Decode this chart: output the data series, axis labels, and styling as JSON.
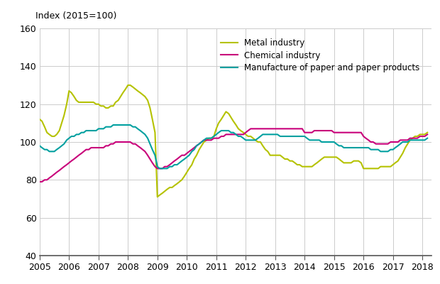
{
  "title": "Index (2015=100)",
  "ylim": [
    40,
    160
  ],
  "xlim": [
    2005,
    2018.3
  ],
  "yticks": [
    40,
    60,
    80,
    100,
    120,
    140,
    160
  ],
  "xticks": [
    2005,
    2006,
    2007,
    2008,
    2009,
    2010,
    2011,
    2012,
    2013,
    2014,
    2015,
    2016,
    2017,
    2018
  ],
  "series": {
    "metal": {
      "label": "Metal industry",
      "color": "#b5c200",
      "linewidth": 1.5,
      "x": [
        2005.0,
        2005.08,
        2005.17,
        2005.25,
        2005.33,
        2005.42,
        2005.5,
        2005.58,
        2005.67,
        2005.75,
        2005.83,
        2005.92,
        2006.0,
        2006.08,
        2006.17,
        2006.25,
        2006.33,
        2006.42,
        2006.5,
        2006.58,
        2006.67,
        2006.75,
        2006.83,
        2006.92,
        2007.0,
        2007.08,
        2007.17,
        2007.25,
        2007.33,
        2007.42,
        2007.5,
        2007.58,
        2007.67,
        2007.75,
        2007.83,
        2007.92,
        2008.0,
        2008.08,
        2008.17,
        2008.25,
        2008.33,
        2008.42,
        2008.5,
        2008.58,
        2008.67,
        2008.75,
        2008.83,
        2008.92,
        2009.0,
        2009.08,
        2009.17,
        2009.25,
        2009.33,
        2009.42,
        2009.5,
        2009.58,
        2009.67,
        2009.75,
        2009.83,
        2009.92,
        2010.0,
        2010.08,
        2010.17,
        2010.25,
        2010.33,
        2010.42,
        2010.5,
        2010.58,
        2010.67,
        2010.75,
        2010.83,
        2010.92,
        2011.0,
        2011.08,
        2011.17,
        2011.25,
        2011.33,
        2011.42,
        2011.5,
        2011.58,
        2011.67,
        2011.75,
        2011.83,
        2011.92,
        2012.0,
        2012.08,
        2012.17,
        2012.25,
        2012.33,
        2012.42,
        2012.5,
        2012.58,
        2012.67,
        2012.75,
        2012.83,
        2012.92,
        2013.0,
        2013.08,
        2013.17,
        2013.25,
        2013.33,
        2013.42,
        2013.5,
        2013.58,
        2013.67,
        2013.75,
        2013.83,
        2013.92,
        2014.0,
        2014.08,
        2014.17,
        2014.25,
        2014.33,
        2014.42,
        2014.5,
        2014.58,
        2014.67,
        2014.75,
        2014.83,
        2014.92,
        2015.0,
        2015.08,
        2015.17,
        2015.25,
        2015.33,
        2015.42,
        2015.5,
        2015.58,
        2015.67,
        2015.75,
        2015.83,
        2015.92,
        2016.0,
        2016.08,
        2016.17,
        2016.25,
        2016.33,
        2016.42,
        2016.5,
        2016.58,
        2016.67,
        2016.75,
        2016.83,
        2016.92,
        2017.0,
        2017.08,
        2017.17,
        2017.25,
        2017.33,
        2017.42,
        2017.5,
        2017.58,
        2017.67,
        2017.75,
        2017.83,
        2017.92,
        2018.0,
        2018.08,
        2018.17
      ],
      "y": [
        112,
        111,
        108,
        105,
        104,
        103,
        103,
        104,
        106,
        110,
        114,
        120,
        127,
        126,
        124,
        122,
        121,
        121,
        121,
        121,
        121,
        121,
        121,
        120,
        120,
        119,
        119,
        118,
        118,
        119,
        119,
        121,
        122,
        124,
        126,
        128,
        130,
        130,
        129,
        128,
        127,
        126,
        125,
        124,
        122,
        118,
        112,
        105,
        71,
        72,
        73,
        74,
        75,
        76,
        76,
        77,
        78,
        79,
        80,
        82,
        84,
        86,
        88,
        91,
        93,
        96,
        98,
        100,
        101,
        102,
        102,
        103,
        107,
        110,
        112,
        114,
        116,
        115,
        113,
        111,
        109,
        107,
        106,
        105,
        104,
        103,
        103,
        102,
        101,
        100,
        100,
        98,
        96,
        95,
        93,
        93,
        93,
        93,
        93,
        92,
        91,
        91,
        90,
        90,
        89,
        88,
        88,
        87,
        87,
        87,
        87,
        87,
        88,
        89,
        90,
        91,
        92,
        92,
        92,
        92,
        92,
        92,
        91,
        90,
        89,
        89,
        89,
        89,
        90,
        90,
        90,
        89,
        86,
        86,
        86,
        86,
        86,
        86,
        86,
        87,
        87,
        87,
        87,
        87,
        88,
        89,
        90,
        92,
        94,
        97,
        99,
        101,
        102,
        103,
        103,
        104,
        104,
        104,
        105
      ]
    },
    "chemical": {
      "label": "Chemical industry",
      "color": "#c8007a",
      "linewidth": 1.5,
      "x": [
        2005.0,
        2005.08,
        2005.17,
        2005.25,
        2005.33,
        2005.42,
        2005.5,
        2005.58,
        2005.67,
        2005.75,
        2005.83,
        2005.92,
        2006.0,
        2006.08,
        2006.17,
        2006.25,
        2006.33,
        2006.42,
        2006.5,
        2006.58,
        2006.67,
        2006.75,
        2006.83,
        2006.92,
        2007.0,
        2007.08,
        2007.17,
        2007.25,
        2007.33,
        2007.42,
        2007.5,
        2007.58,
        2007.67,
        2007.75,
        2007.83,
        2007.92,
        2008.0,
        2008.08,
        2008.17,
        2008.25,
        2008.33,
        2008.42,
        2008.5,
        2008.58,
        2008.67,
        2008.75,
        2008.83,
        2008.92,
        2009.0,
        2009.08,
        2009.17,
        2009.25,
        2009.33,
        2009.42,
        2009.5,
        2009.58,
        2009.67,
        2009.75,
        2009.83,
        2009.92,
        2010.0,
        2010.08,
        2010.17,
        2010.25,
        2010.33,
        2010.42,
        2010.5,
        2010.58,
        2010.67,
        2010.75,
        2010.83,
        2010.92,
        2011.0,
        2011.08,
        2011.17,
        2011.25,
        2011.33,
        2011.42,
        2011.5,
        2011.58,
        2011.67,
        2011.75,
        2011.83,
        2011.92,
        2012.0,
        2012.08,
        2012.17,
        2012.25,
        2012.33,
        2012.42,
        2012.5,
        2012.58,
        2012.67,
        2012.75,
        2012.83,
        2012.92,
        2013.0,
        2013.08,
        2013.17,
        2013.25,
        2013.33,
        2013.42,
        2013.5,
        2013.58,
        2013.67,
        2013.75,
        2013.83,
        2013.92,
        2014.0,
        2014.08,
        2014.17,
        2014.25,
        2014.33,
        2014.42,
        2014.5,
        2014.58,
        2014.67,
        2014.75,
        2014.83,
        2014.92,
        2015.0,
        2015.08,
        2015.17,
        2015.25,
        2015.33,
        2015.42,
        2015.5,
        2015.58,
        2015.67,
        2015.75,
        2015.83,
        2015.92,
        2016.0,
        2016.08,
        2016.17,
        2016.25,
        2016.33,
        2016.42,
        2016.5,
        2016.58,
        2016.67,
        2016.75,
        2016.83,
        2016.92,
        2017.0,
        2017.08,
        2017.17,
        2017.25,
        2017.33,
        2017.42,
        2017.5,
        2017.58,
        2017.67,
        2017.75,
        2017.83,
        2017.92,
        2018.0,
        2018.08,
        2018.17
      ],
      "y": [
        79,
        79,
        80,
        80,
        81,
        82,
        83,
        84,
        85,
        86,
        87,
        88,
        89,
        90,
        91,
        92,
        93,
        94,
        95,
        96,
        96,
        97,
        97,
        97,
        97,
        97,
        97,
        98,
        98,
        99,
        99,
        100,
        100,
        100,
        100,
        100,
        100,
        100,
        99,
        99,
        98,
        97,
        96,
        95,
        93,
        91,
        89,
        87,
        86,
        86,
        86,
        87,
        87,
        88,
        89,
        90,
        91,
        92,
        93,
        93,
        94,
        95,
        96,
        97,
        98,
        99,
        100,
        101,
        101,
        101,
        101,
        102,
        102,
        102,
        103,
        103,
        104,
        104,
        104,
        104,
        104,
        104,
        104,
        104,
        105,
        106,
        107,
        107,
        107,
        107,
        107,
        107,
        107,
        107,
        107,
        107,
        107,
        107,
        107,
        107,
        107,
        107,
        107,
        107,
        107,
        107,
        107,
        107,
        105,
        105,
        105,
        105,
        106,
        106,
        106,
        106,
        106,
        106,
        106,
        106,
        105,
        105,
        105,
        105,
        105,
        105,
        105,
        105,
        105,
        105,
        105,
        105,
        103,
        102,
        101,
        100,
        100,
        99,
        99,
        99,
        99,
        99,
        99,
        100,
        100,
        100,
        100,
        101,
        101,
        101,
        101,
        102,
        102,
        102,
        102,
        103,
        103,
        103,
        104
      ]
    },
    "paper": {
      "label": "Manufacture of paper and paper products",
      "color": "#00a0a0",
      "linewidth": 1.5,
      "x": [
        2005.0,
        2005.08,
        2005.17,
        2005.25,
        2005.33,
        2005.42,
        2005.5,
        2005.58,
        2005.67,
        2005.75,
        2005.83,
        2005.92,
        2006.0,
        2006.08,
        2006.17,
        2006.25,
        2006.33,
        2006.42,
        2006.5,
        2006.58,
        2006.67,
        2006.75,
        2006.83,
        2006.92,
        2007.0,
        2007.08,
        2007.17,
        2007.25,
        2007.33,
        2007.42,
        2007.5,
        2007.58,
        2007.67,
        2007.75,
        2007.83,
        2007.92,
        2008.0,
        2008.08,
        2008.17,
        2008.25,
        2008.33,
        2008.42,
        2008.5,
        2008.58,
        2008.67,
        2008.75,
        2008.83,
        2008.92,
        2009.0,
        2009.08,
        2009.17,
        2009.25,
        2009.33,
        2009.42,
        2009.5,
        2009.58,
        2009.67,
        2009.75,
        2009.83,
        2009.92,
        2010.0,
        2010.08,
        2010.17,
        2010.25,
        2010.33,
        2010.42,
        2010.5,
        2010.58,
        2010.67,
        2010.75,
        2010.83,
        2010.92,
        2011.0,
        2011.08,
        2011.17,
        2011.25,
        2011.33,
        2011.42,
        2011.5,
        2011.58,
        2011.67,
        2011.75,
        2011.83,
        2011.92,
        2012.0,
        2012.08,
        2012.17,
        2012.25,
        2012.33,
        2012.42,
        2012.5,
        2012.58,
        2012.67,
        2012.75,
        2012.83,
        2012.92,
        2013.0,
        2013.08,
        2013.17,
        2013.25,
        2013.33,
        2013.42,
        2013.5,
        2013.58,
        2013.67,
        2013.75,
        2013.83,
        2013.92,
        2014.0,
        2014.08,
        2014.17,
        2014.25,
        2014.33,
        2014.42,
        2014.5,
        2014.58,
        2014.67,
        2014.75,
        2014.83,
        2014.92,
        2015.0,
        2015.08,
        2015.17,
        2015.25,
        2015.33,
        2015.42,
        2015.5,
        2015.58,
        2015.67,
        2015.75,
        2015.83,
        2015.92,
        2016.0,
        2016.08,
        2016.17,
        2016.25,
        2016.33,
        2016.42,
        2016.5,
        2016.58,
        2016.67,
        2016.75,
        2016.83,
        2016.92,
        2017.0,
        2017.08,
        2017.17,
        2017.25,
        2017.33,
        2017.42,
        2017.5,
        2017.58,
        2017.67,
        2017.75,
        2017.83,
        2017.92,
        2018.0,
        2018.08,
        2018.17
      ],
      "y": [
        98,
        97,
        96,
        96,
        95,
        95,
        95,
        96,
        97,
        98,
        99,
        101,
        102,
        103,
        103,
        104,
        104,
        105,
        105,
        106,
        106,
        106,
        106,
        106,
        107,
        107,
        107,
        108,
        108,
        108,
        109,
        109,
        109,
        109,
        109,
        109,
        109,
        109,
        108,
        108,
        107,
        106,
        105,
        104,
        102,
        99,
        96,
        93,
        87,
        86,
        86,
        86,
        86,
        87,
        87,
        88,
        88,
        89,
        90,
        91,
        92,
        93,
        95,
        96,
        98,
        99,
        100,
        101,
        102,
        102,
        102,
        103,
        104,
        105,
        106,
        106,
        106,
        106,
        105,
        105,
        104,
        103,
        103,
        102,
        101,
        101,
        101,
        101,
        101,
        102,
        103,
        104,
        104,
        104,
        104,
        104,
        104,
        104,
        103,
        103,
        103,
        103,
        103,
        103,
        103,
        103,
        103,
        103,
        103,
        102,
        101,
        101,
        101,
        101,
        101,
        100,
        100,
        100,
        100,
        100,
        100,
        99,
        98,
        98,
        97,
        97,
        97,
        97,
        97,
        97,
        97,
        97,
        97,
        97,
        97,
        96,
        96,
        96,
        96,
        95,
        95,
        95,
        95,
        96,
        96,
        97,
        98,
        99,
        100,
        100,
        100,
        101,
        101,
        101,
        101,
        101,
        101,
        101,
        102
      ]
    }
  },
  "background_color": "#ffffff",
  "grid_color": "#cccccc",
  "figure_width": 6.2,
  "figure_height": 4.0,
  "dpi": 100
}
